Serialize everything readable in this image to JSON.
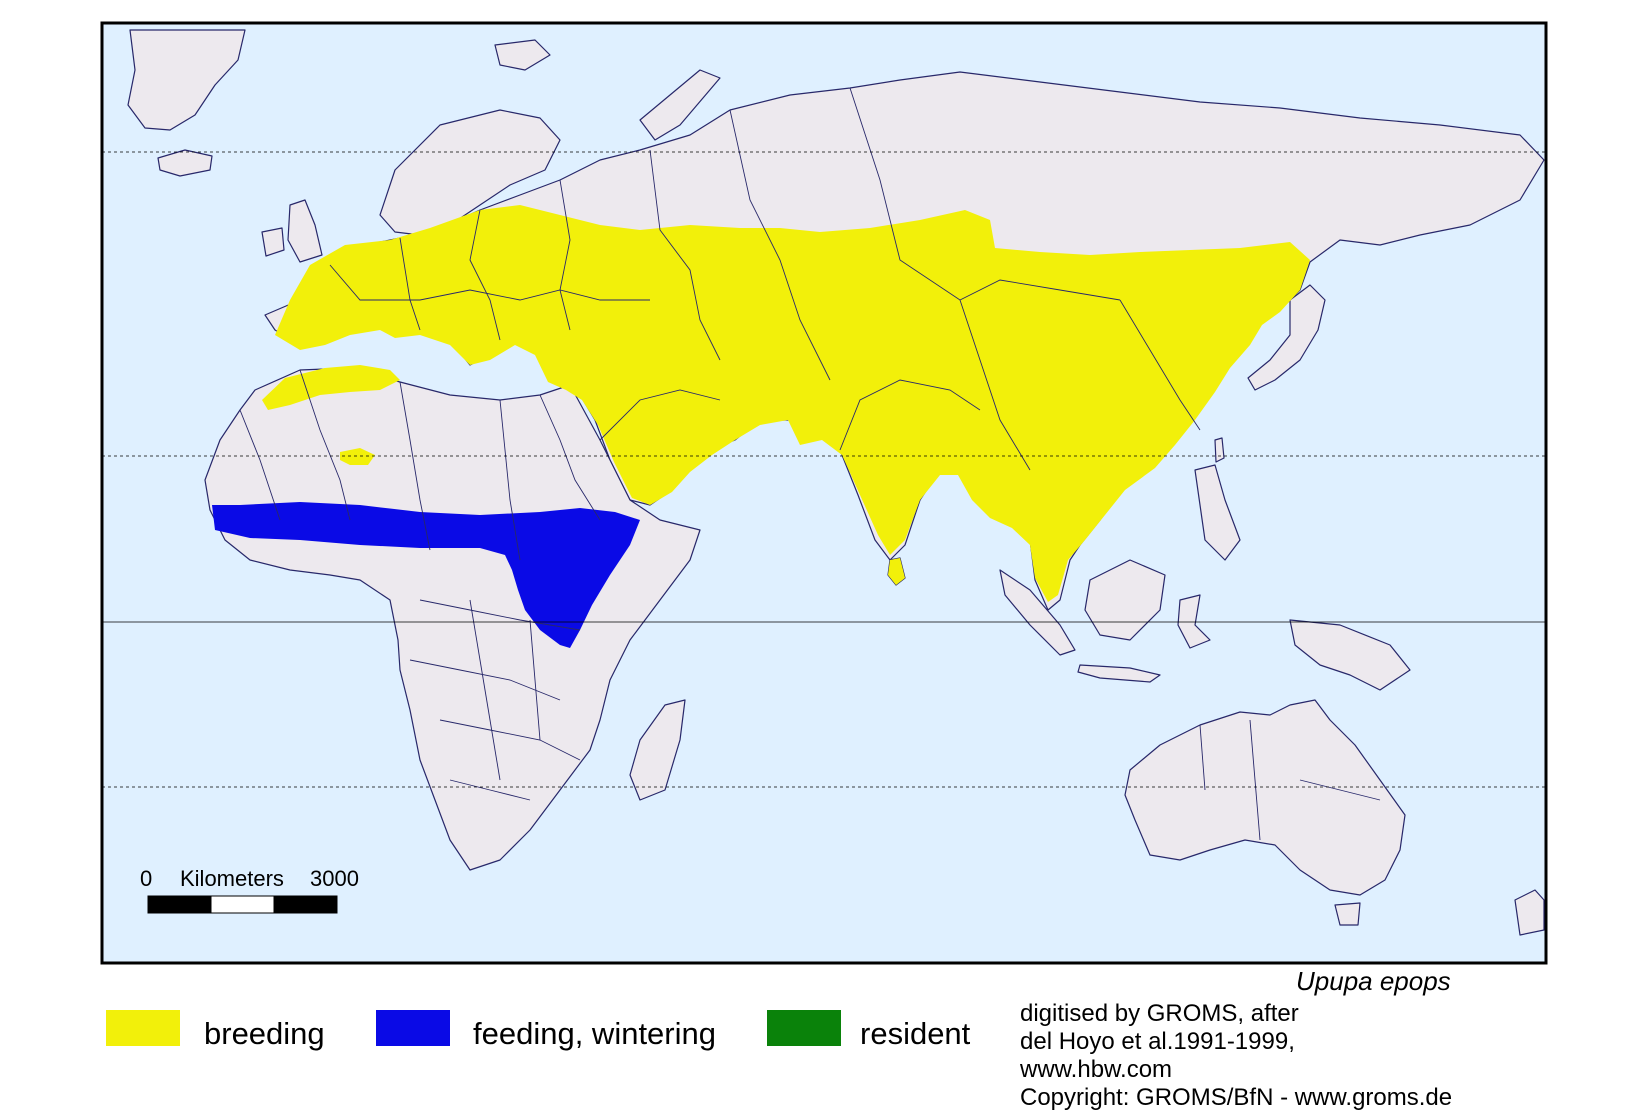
{
  "colors": {
    "ocean": "#dff0ff",
    "land": "#ede9ee",
    "border": "#28286a",
    "breeding": "#f2f00a",
    "wintering": "#0a0ae6",
    "resident": "#0a820a"
  },
  "scale_bar": {
    "start_label": "0",
    "unit_label": "Kilometers",
    "end_label": "3000"
  },
  "legend": [
    {
      "key": "breeding",
      "label": "breeding",
      "color": "#f2f00a"
    },
    {
      "key": "wintering",
      "label": "feeding, wintering",
      "color": "#0a0ae6"
    },
    {
      "key": "resident",
      "label": "resident",
      "color": "#0a820a"
    }
  ],
  "species": "Upupa epops",
  "credits": [
    "digitised by GROMS, after",
    "del Hoyo et al.1991-1999,",
    "www.hbw.com",
    "Copyright: GROMS/BfN - www.groms.de"
  ]
}
